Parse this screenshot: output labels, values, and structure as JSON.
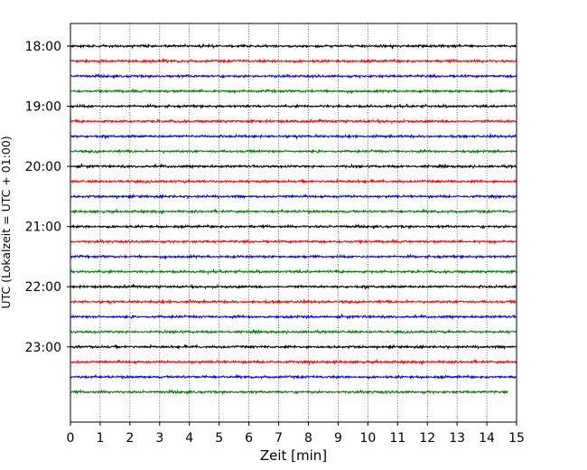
{
  "chart_data": {
    "type": "line",
    "title": "",
    "xlabel": "Zeit  [min]",
    "ylabel": "UTC (Lokalzeit = UTC + 01:00)",
    "xlim": [
      0,
      15
    ],
    "x_ticks": [
      "0",
      "1",
      "2",
      "3",
      "4",
      "5",
      "6",
      "7",
      "8",
      "9",
      "10",
      "11",
      "12",
      "13",
      "14",
      "15"
    ],
    "y_tick_labels": [
      "18:00",
      "19:00",
      "20:00",
      "21:00",
      "22:00",
      "23:00"
    ],
    "y_range": [
      "17:37:30",
      "24:15:00"
    ],
    "grid": "vertical dotted",
    "trace_interval_minutes": 15,
    "trace_duration_minutes": 15,
    "trace_start_times": [
      "18:00",
      "18:15",
      "18:30",
      "18:45",
      "19:00",
      "19:15",
      "19:30",
      "19:45",
      "20:00",
      "20:15",
      "20:30",
      "20:45",
      "21:00",
      "21:15",
      "21:30",
      "21:45",
      "22:00",
      "22:15",
      "22:30",
      "22:45",
      "23:00",
      "23:15",
      "23:30",
      "23:45"
    ],
    "trace_colors": [
      "#000000",
      "#ff0000",
      "#0000ff",
      "#007f00"
    ],
    "last_trace_end_minutes": 14.7
  }
}
